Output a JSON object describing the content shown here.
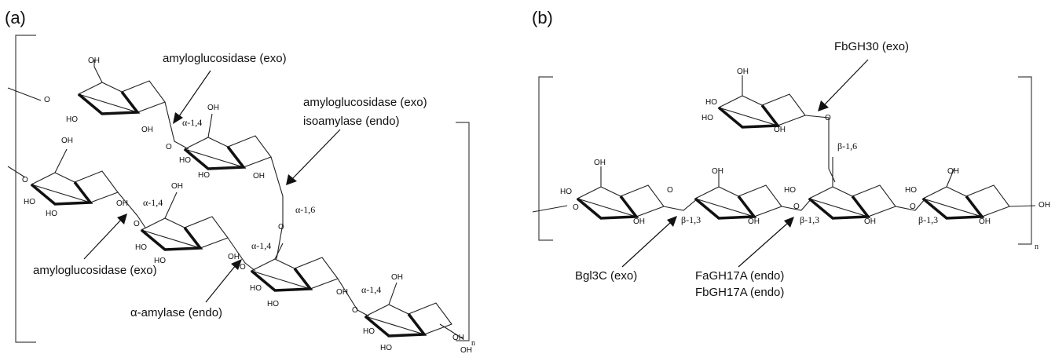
{
  "panels": {
    "a": {
      "label": "(a)",
      "enzymes": {
        "e1": "amyloglucosidase (exo)",
        "e2_line1": "amyloglucosidase (exo)",
        "e2_line2": "isoamylase (endo)",
        "e3": "amyloglucosidase (exo)",
        "e4": "α-amylase (endo)"
      },
      "linkages": {
        "l1": "α-1,4",
        "l2": "α-1,4",
        "l3": "α-1,6",
        "l4": "α-1,4",
        "l5": "α-1,4"
      },
      "repeat_subscript": "n"
    },
    "b": {
      "label": "(b)",
      "enzymes": {
        "e1": "FbGH30 (exo)",
        "e2": "Bgl3C (exo)",
        "e3_line1": "FaGH17A (endo)",
        "e3_line2": "FbGH17A (endo)"
      },
      "linkages": {
        "l1": "β-1,6",
        "l2": "β-1,3",
        "l3": "β-1,3",
        "l4": "β-1,3"
      },
      "repeat_subscript": "n"
    }
  },
  "atoms": {
    "oh": "OH",
    "ho": "HO",
    "o": "O"
  }
}
